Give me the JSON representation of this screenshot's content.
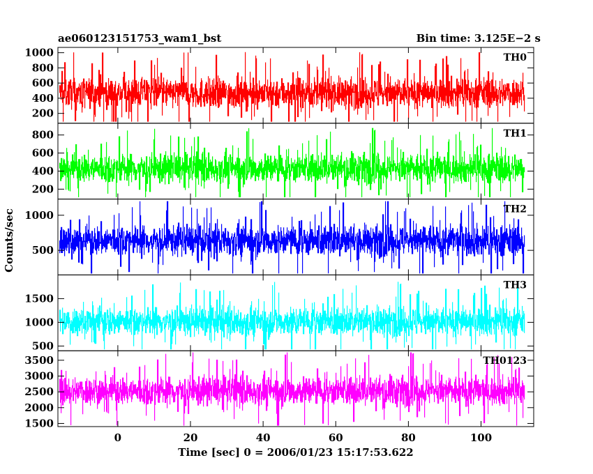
{
  "chart_data": {
    "type": "line",
    "title_left": "ae060123151753_wam1_bst",
    "title_right": "Bin time: 3.125E−2 s",
    "xlabel": "Time [sec] 0 = 2006/01/23 15:17:53.622",
    "ylabel": "Counts/sec",
    "xlim": [
      -16.5,
      114.5
    ],
    "x_data_range": [
      -16,
      112
    ],
    "xticks": [
      0,
      20,
      40,
      60,
      80,
      100
    ],
    "xtick_labels": [
      "0",
      "20",
      "40",
      "60",
      "80",
      "100"
    ],
    "grid": false,
    "panels": [
      {
        "name": "TH0",
        "color": "#ff0000",
        "ylim": [
          70,
          1070
        ],
        "yticks": [
          200,
          400,
          600,
          800,
          1000
        ],
        "ytick_labels": [
          "200",
          "400",
          "600",
          "800",
          "1000"
        ],
        "mean": 470,
        "spread": 180,
        "min": 90,
        "max": 1060
      },
      {
        "name": "TH1",
        "color": "#00ff00",
        "ylim": [
          90,
          930
        ],
        "yticks": [
          200,
          400,
          600,
          800
        ],
        "ytick_labels": [
          "200",
          "400",
          "600",
          "800"
        ],
        "mean": 430,
        "spread": 150,
        "min": 110,
        "max": 920
      },
      {
        "name": "TH2",
        "color": "#0000ff",
        "ylim": [
          150,
          1230
        ],
        "yticks": [
          500,
          1000
        ],
        "ytick_labels": [
          "500",
          "1000"
        ],
        "mean": 640,
        "spread": 200,
        "min": 170,
        "max": 1200
      },
      {
        "name": "TH3",
        "color": "#00ffff",
        "ylim": [
          400,
          2000
        ],
        "yticks": [
          500,
          1000,
          1500
        ],
        "ytick_labels": [
          "500",
          "1000",
          "1500"
        ],
        "mean": 1020,
        "spread": 280,
        "min": 430,
        "max": 1970
      },
      {
        "name": "TH0123",
        "color": "#ff00ff",
        "ylim": [
          1400,
          3800
        ],
        "yticks": [
          1500,
          2000,
          2500,
          3000,
          3500
        ],
        "ytick_labels": [
          "1500",
          "2000",
          "2500",
          "3000",
          "3500"
        ],
        "mean": 2530,
        "spread": 420,
        "min": 1430,
        "max": 3750
      }
    ]
  }
}
